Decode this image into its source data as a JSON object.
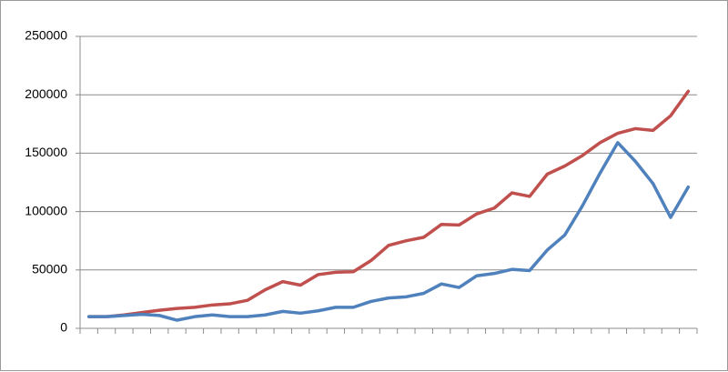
{
  "chart_data": {
    "type": "line",
    "categories": [
      null,
      null,
      null,
      null,
      null,
      null,
      null,
      null,
      null,
      null,
      null,
      null,
      null,
      null,
      null,
      null,
      null,
      null,
      null,
      null,
      null,
      null,
      null,
      null,
      null,
      null,
      null,
      null,
      null,
      null,
      null,
      null,
      null,
      null,
      null
    ],
    "series": [
      {
        "color": "#c0504d",
        "values": [
          10000,
          10000,
          11500,
          13500,
          15500,
          17000,
          18000,
          20000,
          21000,
          24000,
          33000,
          40000,
          37000,
          46000,
          48000,
          48500,
          58000,
          71000,
          75000,
          78000,
          89000,
          88500,
          98000,
          103000,
          116000,
          113000,
          132000,
          139000,
          148000,
          159000,
          167000,
          171000,
          169500,
          182000,
          203000
        ]
      },
      {
        "color": "#4f81bd",
        "values": [
          10000,
          10000,
          11000,
          12000,
          11000,
          7000,
          10000,
          11500,
          10000,
          10000,
          11500,
          14500,
          13000,
          15000,
          18000,
          18000,
          23000,
          26000,
          27000,
          30000,
          38000,
          35000,
          45000,
          47000,
          50500,
          49500,
          67000,
          80000,
          105000,
          133000,
          159000,
          143000,
          124000,
          95000,
          121000
        ]
      }
    ],
    "ylim": [
      0,
      250000
    ],
    "yticks": [
      0,
      50000,
      100000,
      150000,
      200000,
      250000
    ],
    "grid": true
  }
}
